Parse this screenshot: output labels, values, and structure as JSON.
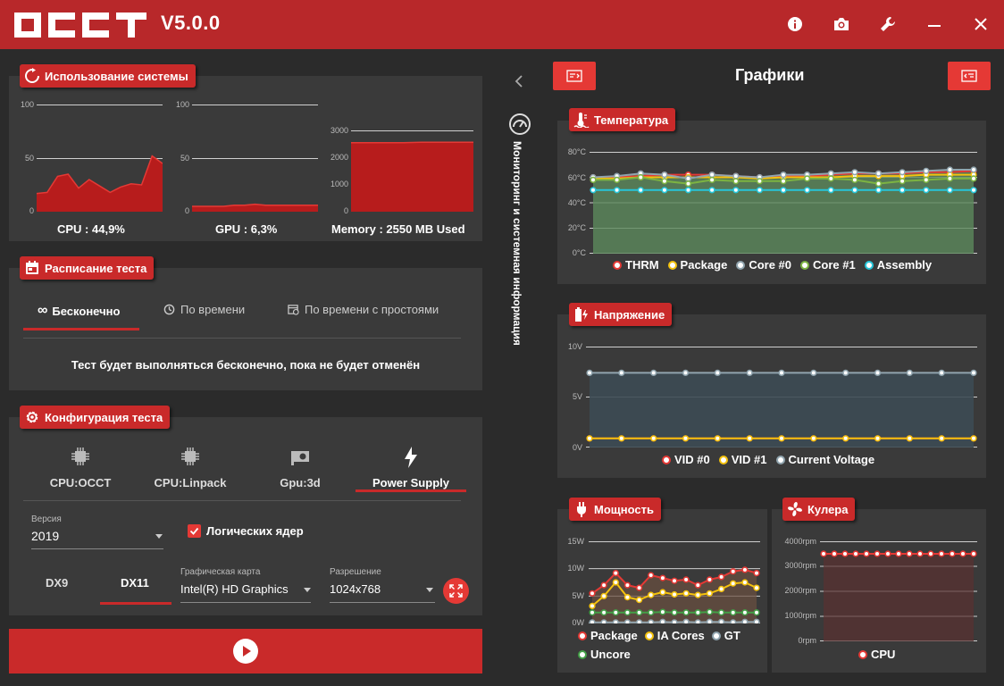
{
  "app": {
    "version": "V5.0.0"
  },
  "titlebar": {
    "icons": [
      "info-icon",
      "camera-icon",
      "wrench-icon",
      "minimize-icon",
      "close-icon"
    ]
  },
  "usage": {
    "title": "Использование системы",
    "cpu_label": "CPU : 44,9%",
    "gpu_label": "GPU : 6,3%",
    "mem_label": "Memory : 2550 MB Used",
    "cpu_ticks": [
      "100",
      "50",
      "0"
    ],
    "gpu_ticks": [
      "100",
      "50",
      "0"
    ],
    "mem_ticks": [
      "3000",
      "2000",
      "1000",
      "0"
    ],
    "cpu_series": [
      17,
      18,
      33,
      35,
      22,
      30,
      24,
      18,
      23,
      26,
      25,
      52,
      45
    ],
    "gpu_series": [
      5,
      5,
      5,
      5,
      6,
      6,
      7,
      6,
      6,
      6,
      6,
      6,
      6
    ],
    "mem_series": [
      2550,
      2550,
      2550,
      2550,
      2560,
      2560,
      2560,
      2560
    ]
  },
  "schedule": {
    "title": "Расписание теста",
    "tabs": [
      "Бесконечно",
      "По времени",
      "По времени с простоями"
    ],
    "message": "Тест будет выполняться бесконечно, пока не будет отменён"
  },
  "config": {
    "title": "Конфигурация теста",
    "tests": [
      "CPU:OCCT",
      "CPU:Linpack",
      "Gpu:3d",
      "Power Supply"
    ],
    "version_label": "Версия",
    "version_value": "2019",
    "logical_label": "Логических ядер",
    "dx9": "DX9",
    "dx11": "DX11",
    "card_label": "Графическая карта",
    "card_value": "Intel(R) HD Graphics",
    "res_label": "Разрешение",
    "res_value": "1024x768"
  },
  "monitoring_label": "Мониторинг и системная информация",
  "graphs": {
    "title": "Графики"
  },
  "temp": {
    "title": "Температура",
    "ticks": [
      "80°C",
      "60°C",
      "40°C",
      "20°C",
      "0°C"
    ],
    "legend": [
      "THRM",
      "Package",
      "Core #0",
      "Core #1",
      "Assembly"
    ],
    "colors": [
      "#e53935",
      "#f4c20d",
      "#90a4ae",
      "#7cb342",
      "#26c6da"
    ],
    "series": [
      [
        60,
        60,
        61,
        62,
        62,
        62,
        61,
        60,
        61,
        61,
        62,
        63,
        63,
        63,
        64,
        64,
        65
      ],
      [
        59,
        59,
        60,
        60,
        60,
        60,
        60,
        59,
        60,
        60,
        60,
        61,
        61,
        61,
        62,
        62,
        62
      ],
      [
        60,
        61,
        63,
        62,
        59,
        62,
        61,
        60,
        62,
        62,
        63,
        64,
        63,
        64,
        65,
        66,
        66
      ],
      [
        58,
        58,
        60,
        57,
        55,
        58,
        57,
        57,
        57,
        59,
        59,
        58,
        55,
        57,
        58,
        59,
        59
      ],
      [
        50,
        50,
        50,
        50,
        50,
        50,
        50,
        50,
        50,
        50,
        50,
        50,
        50,
        50,
        50,
        50,
        50
      ]
    ]
  },
  "volt": {
    "title": "Напряжение",
    "ticks": [
      "10V",
      "5V",
      "0V"
    ],
    "legend": [
      "VID #0",
      "VID #1",
      "Current Voltage"
    ],
    "colors": [
      "#e53935",
      "#f4c20d",
      "#90a4ae"
    ],
    "series": [
      [
        0.9,
        0.9,
        0.9,
        0.9,
        0.9,
        0.9,
        0.9,
        0.9,
        0.9,
        0.9,
        0.9,
        0.9,
        0.9
      ],
      [
        0.9,
        0.9,
        0.9,
        0.9,
        0.9,
        0.9,
        0.9,
        0.9,
        0.9,
        0.9,
        0.9,
        0.9,
        0.9
      ],
      [
        7.4,
        7.4,
        7.4,
        7.4,
        7.4,
        7.4,
        7.4,
        7.4,
        7.4,
        7.4,
        7.4,
        7.4,
        7.4
      ]
    ]
  },
  "power": {
    "title": "Мощность",
    "ticks": [
      "15W",
      "10W",
      "5W",
      "0W"
    ],
    "legend": [
      "Package",
      "IA Cores",
      "GT",
      "Uncore"
    ],
    "colors": [
      "#e53935",
      "#f4c20d",
      "#90a4ae",
      "#43a047"
    ],
    "series": [
      [
        5.5,
        7,
        9.2,
        7,
        6.5,
        8.8,
        8.3,
        7.8,
        8,
        7,
        8,
        8.5,
        9.5,
        9.8,
        9.2
      ],
      [
        3.2,
        5,
        7.5,
        4.8,
        4.3,
        5.2,
        5.7,
        5.3,
        5.5,
        5.2,
        5.5,
        6.3,
        7.3,
        7.5,
        6.5
      ],
      [
        0.2,
        0.2,
        0.2,
        0.2,
        0.2,
        0.2,
        0.3,
        0.2,
        0.3,
        0.2,
        0.3,
        0.3,
        0.2,
        0.3,
        0.3
      ],
      [
        2,
        2,
        2,
        2,
        2,
        2,
        2.1,
        2,
        2,
        2,
        2.1,
        2,
        2,
        2,
        2
      ]
    ]
  },
  "fans": {
    "title": "Кулера",
    "ticks": [
      "4000rpm",
      "3000rpm",
      "2000rpm",
      "1000rpm",
      "0rpm"
    ],
    "legend": [
      "CPU"
    ],
    "colors": [
      "#e53935"
    ],
    "series": [
      [
        3500,
        3500,
        3500,
        3500,
        3500,
        3500,
        3500,
        3500,
        3500,
        3500,
        3500,
        3500,
        3500,
        3500,
        3500
      ]
    ]
  }
}
